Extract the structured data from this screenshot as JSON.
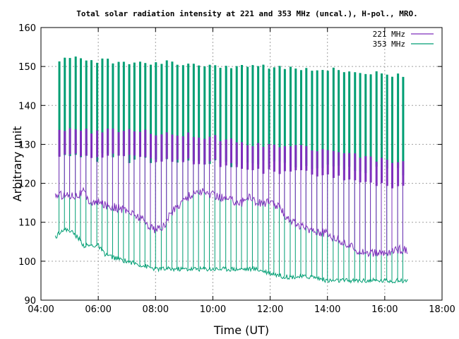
{
  "chart_data": {
    "type": "line",
    "title": "Total solar radiation intensity at 221 and 353 MHz (uncal.), H-pol., MRO.",
    "xlabel": "Time (UT)",
    "ylabel": "Arbitrary unit",
    "xlim": [
      4.0,
      18.0
    ],
    "ylim": [
      90,
      160
    ],
    "xticks": [
      "04:00",
      "06:00",
      "08:00",
      "10:00",
      "12:00",
      "14:00",
      "16:00",
      "18:00"
    ],
    "yticks": [
      "90",
      "100",
      "110",
      "120",
      "130",
      "140",
      "150",
      "160"
    ],
    "grid": true,
    "legend_position": "top-right",
    "series": [
      {
        "name": "221 MHz",
        "color": "#7e2fbc",
        "spike_peak": [
          133.5,
          133.5,
          133.0,
          132.0,
          130.0,
          129.0,
          127.0,
          125.0
        ],
        "baseline": {
          "x": [
            4.5,
            5.0,
            5.3,
            5.5,
            5.6,
            5.8,
            6.0,
            6.5,
            7.0,
            7.5,
            7.8,
            8.0,
            8.3,
            8.5,
            9.0,
            9.5,
            10.0,
            10.5,
            11.0,
            11.3,
            11.5,
            12.0,
            12.3,
            12.5,
            13.0,
            13.5,
            14.0,
            14.5,
            15.0,
            15.5,
            16.0,
            16.5,
            16.8
          ],
          "y": [
            117,
            117,
            117,
            118,
            116,
            115,
            115,
            114,
            113,
            111,
            109,
            108,
            109,
            112,
            116,
            118,
            117,
            116,
            115,
            117,
            115,
            115,
            114,
            112,
            109,
            108,
            107,
            105,
            103,
            102,
            102,
            103,
            103
          ]
        }
      },
      {
        "name": "353 MHz",
        "color": "#009e73",
        "spike_peak": [
          152.0,
          151.5,
          151.0,
          150.5,
          150.0,
          149.5,
          148.5,
          147.5
        ],
        "baseline": {
          "x": [
            4.5,
            4.7,
            5.0,
            5.3,
            5.5,
            6.0,
            6.2,
            6.5,
            7.0,
            7.5,
            8.0,
            8.5,
            9.0,
            9.5,
            10.0,
            10.5,
            11.0,
            11.5,
            12.0,
            12.5,
            13.0,
            13.5,
            14.0,
            14.5,
            15.0,
            15.5,
            16.0,
            16.5,
            16.8
          ],
          "y": [
            106,
            108,
            108,
            106,
            104,
            104,
            102,
            101,
            100,
            99,
            98,
            98,
            98,
            98,
            98,
            98,
            98,
            98,
            97,
            96,
            96,
            96,
            95,
            95,
            95,
            95,
            95,
            95,
            95
          ]
        }
      }
    ],
    "spike_times": [
      4.63,
      4.82,
      5.0,
      5.2,
      5.38,
      5.57,
      5.75,
      5.95,
      6.13,
      6.32,
      6.5,
      6.7,
      6.88,
      7.07,
      7.25,
      7.45,
      7.63,
      7.82,
      8.0,
      8.2,
      8.38,
      8.57,
      8.75,
      8.95,
      9.13,
      9.32,
      9.5,
      9.7,
      9.88,
      10.07,
      10.25,
      10.45,
      10.63,
      10.82,
      11.0,
      11.2,
      11.38,
      11.57,
      11.75,
      11.95,
      12.13,
      12.32,
      12.5,
      12.7,
      12.88,
      13.07,
      13.25,
      13.45,
      13.63,
      13.82,
      14.0,
      14.2,
      14.38,
      14.57,
      14.75,
      14.95,
      15.13,
      15.32,
      15.5,
      15.7,
      15.88,
      16.07,
      16.25,
      16.45,
      16.63
    ]
  }
}
